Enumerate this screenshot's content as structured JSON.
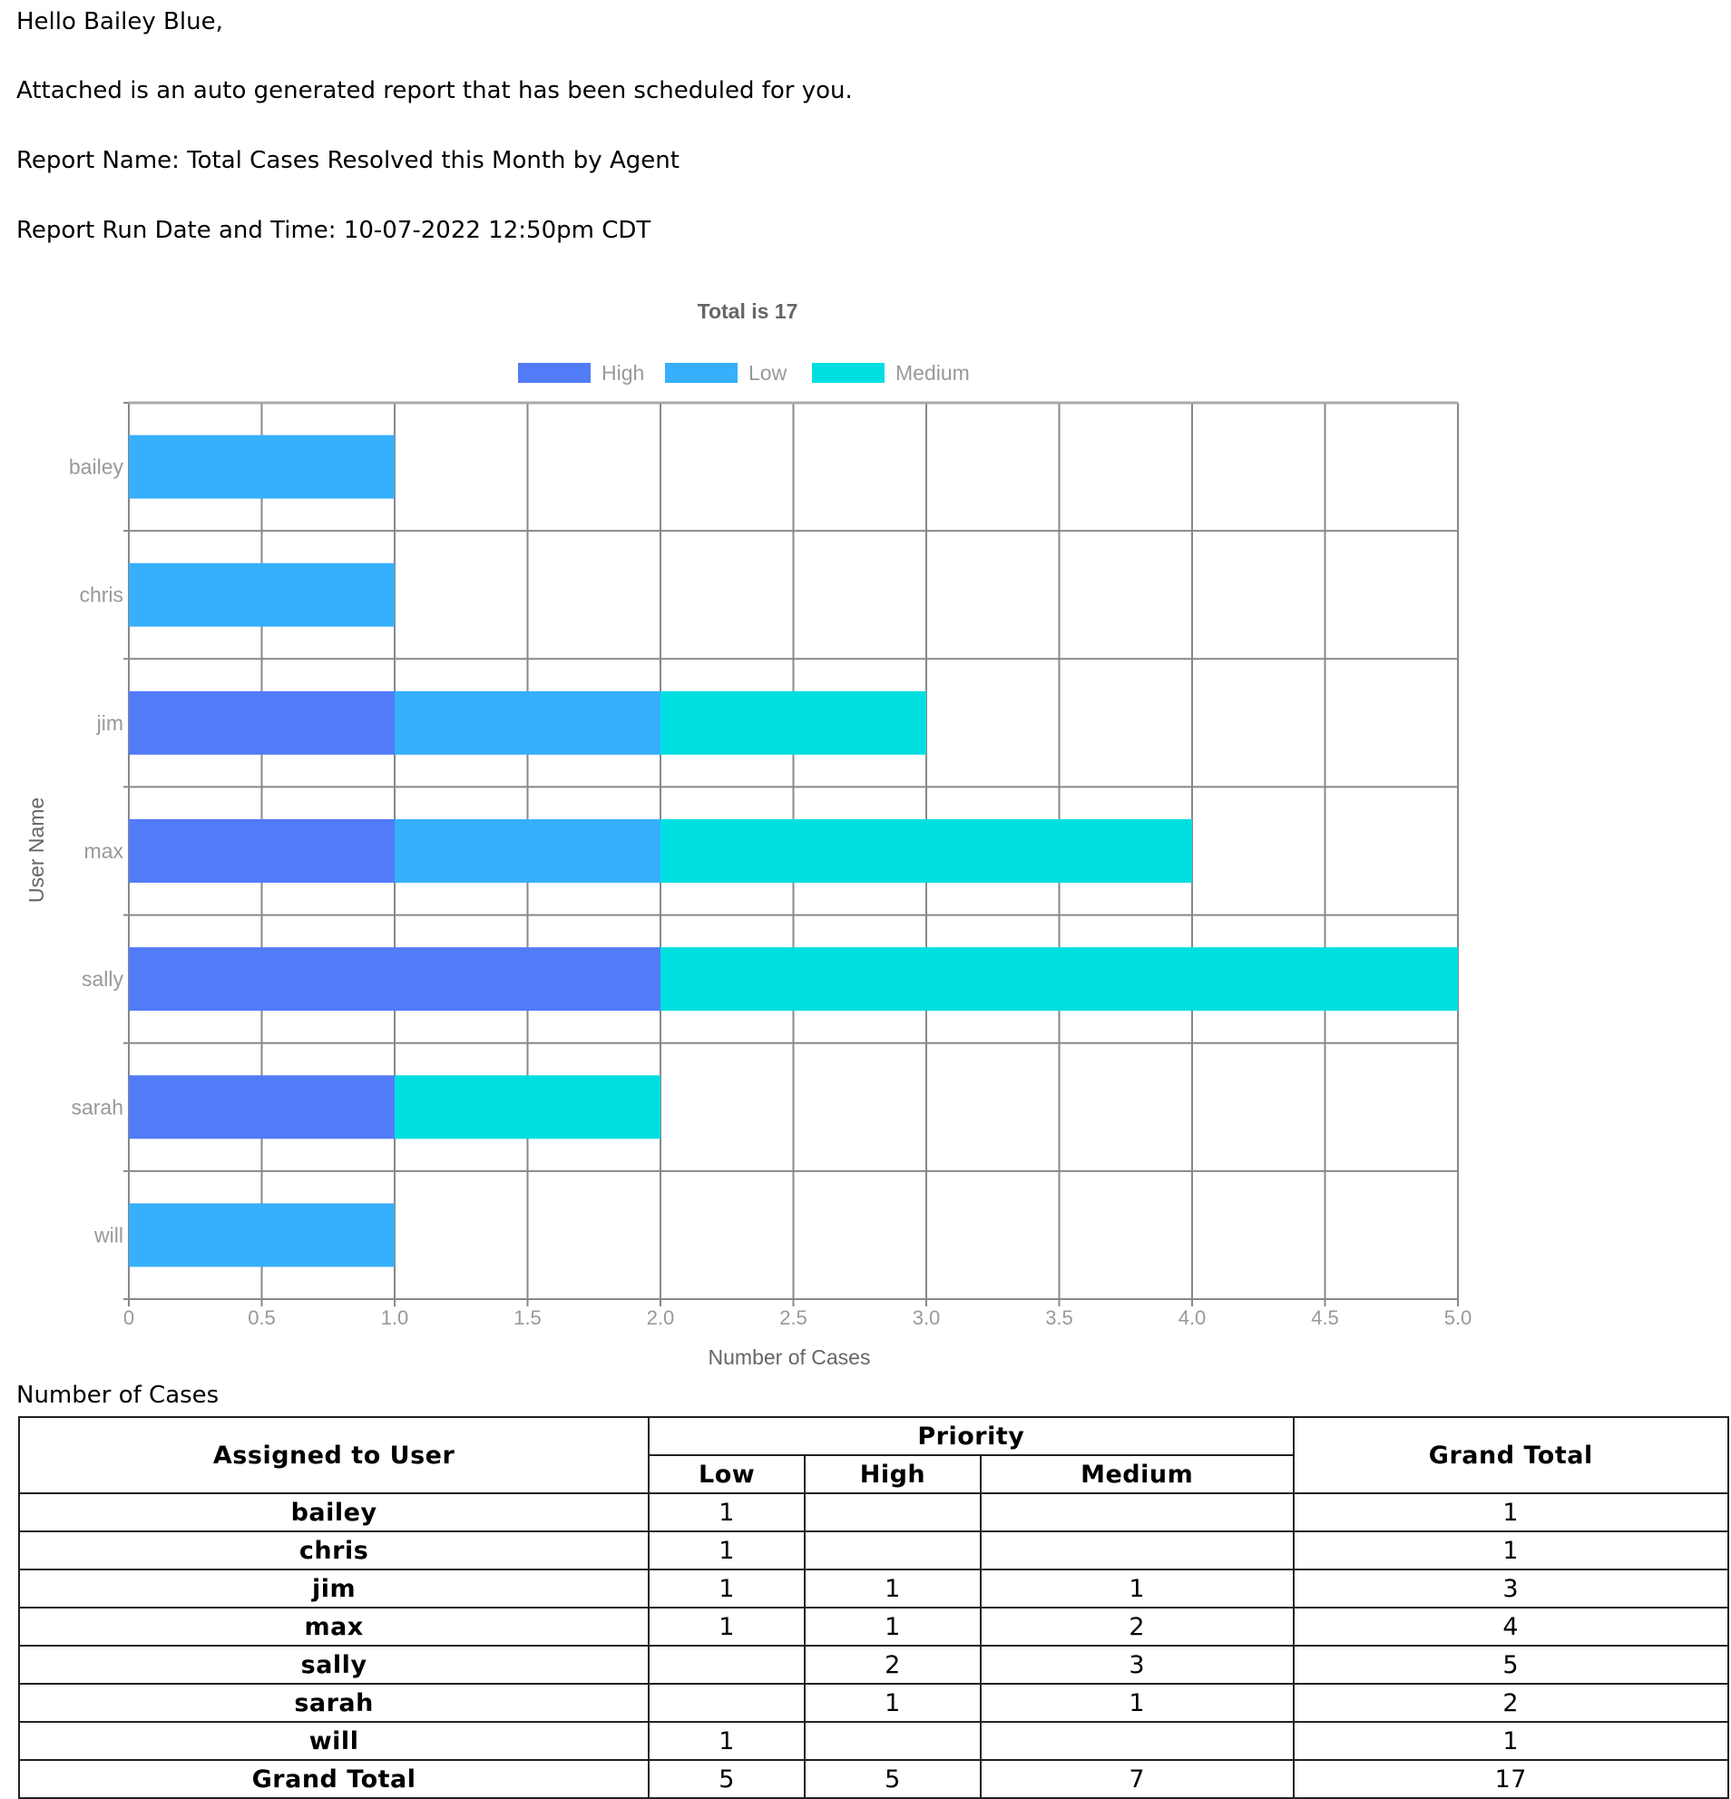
{
  "email": {
    "greeting": "Hello Bailey Blue,",
    "intro": "Attached is an auto generated report that has been scheduled for you.",
    "report_name": "Report Name: Total Cases Resolved this Month by Agent",
    "run_date": "Report Run Date and Time: 10-07-2022 12:50pm CDT"
  },
  "chart_data": {
    "type": "bar",
    "orientation": "horizontal",
    "stacked": true,
    "title": "Total is 17",
    "xlabel": "Number of Cases",
    "ylabel": "User Name",
    "xlim": [
      0,
      5
    ],
    "xticks": [
      "0",
      "0.5",
      "1.0",
      "1.5",
      "2.0",
      "2.5",
      "3.0",
      "3.5",
      "4.0",
      "4.5",
      "5.0"
    ],
    "grid": true,
    "legend": "top",
    "categories": [
      "bailey",
      "chris",
      "jim",
      "max",
      "sally",
      "sarah",
      "will"
    ],
    "series": [
      {
        "name": "High",
        "color": "#527bf7",
        "values": [
          0,
          0,
          1,
          1,
          2,
          1,
          0
        ]
      },
      {
        "name": "Low",
        "color": "#36affc",
        "values": [
          1,
          1,
          1,
          1,
          0,
          0,
          1
        ]
      },
      {
        "name": "Medium",
        "color": "#00dfe0",
        "values": [
          0,
          0,
          1,
          2,
          3,
          1,
          0
        ]
      }
    ]
  },
  "table": {
    "caption": "Number of Cases",
    "header_user": "Assigned to User",
    "header_priority": "Priority",
    "header_grand_total": "Grand Total",
    "subheaders": [
      "Low",
      "High",
      "Medium"
    ],
    "rows": [
      {
        "user": "bailey",
        "low": "1",
        "high": "",
        "medium": "",
        "total": "1"
      },
      {
        "user": "chris",
        "low": "1",
        "high": "",
        "medium": "",
        "total": "1"
      },
      {
        "user": "jim",
        "low": "1",
        "high": "1",
        "medium": "1",
        "total": "3"
      },
      {
        "user": "max",
        "low": "1",
        "high": "1",
        "medium": "2",
        "total": "4"
      },
      {
        "user": "sally",
        "low": "",
        "high": "2",
        "medium": "3",
        "total": "5"
      },
      {
        "user": "sarah",
        "low": "",
        "high": "1",
        "medium": "1",
        "total": "2"
      },
      {
        "user": "will",
        "low": "1",
        "high": "",
        "medium": "",
        "total": "1"
      }
    ],
    "grand_total": {
      "user": "Grand Total",
      "low": "5",
      "high": "5",
      "medium": "7",
      "total": "17"
    }
  }
}
